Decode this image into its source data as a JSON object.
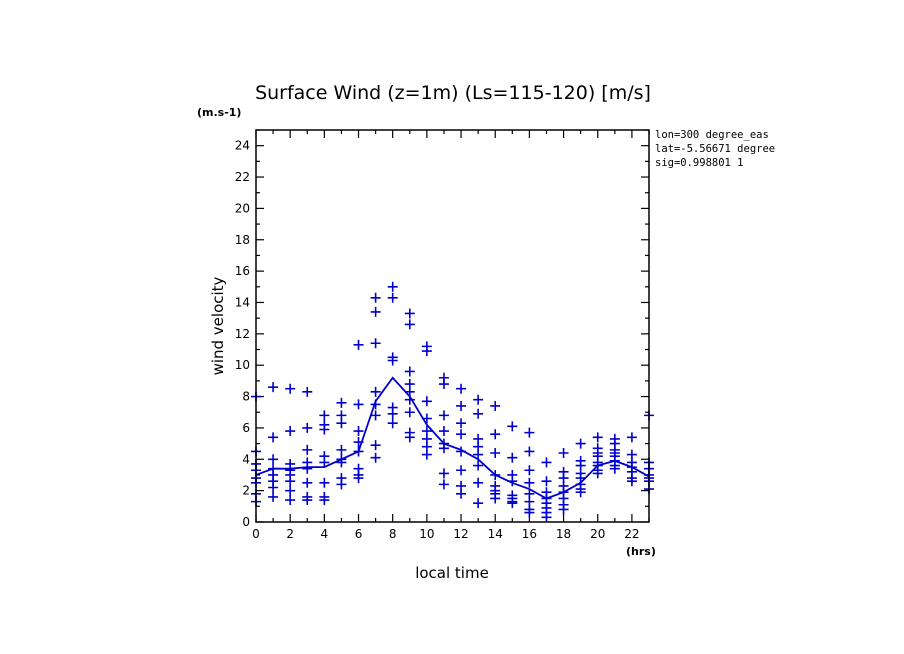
{
  "chart_data": {
    "type": "scatter",
    "title": "Surface Wind (z=1m) (Ls=115-120) [m/s]",
    "y_unit_label": "(m.s-1)",
    "x_unit_label": "(hrs)",
    "xlabel": "local time",
    "ylabel": "wind velocity",
    "xlim": [
      0,
      23
    ],
    "ylim": [
      0,
      25
    ],
    "x_ticks": [
      "0",
      "2",
      "4",
      "6",
      "8",
      "10",
      "12",
      "14",
      "16",
      "18",
      "20",
      "22"
    ],
    "y_ticks": [
      "0",
      "2",
      "4",
      "6",
      "8",
      "10",
      "12",
      "14",
      "16",
      "18",
      "20",
      "22",
      "24"
    ],
    "annotations": [
      "lon=300 degree_eas",
      "lat=-5.56671 degree",
      "sig=0.998801 1"
    ],
    "colors": {
      "series": "#0000cc",
      "axes": "#000000"
    },
    "series": [
      {
        "style": "markers",
        "marker": "plus",
        "points": [
          [
            0,
            8.0
          ],
          [
            0,
            4.5
          ],
          [
            0,
            3.7
          ],
          [
            0,
            3.3
          ],
          [
            0,
            2.8
          ],
          [
            0,
            2.5
          ],
          [
            0,
            1.8
          ],
          [
            0,
            1.3
          ],
          [
            1,
            8.6
          ],
          [
            1,
            5.4
          ],
          [
            1,
            4.0
          ],
          [
            1,
            3.4
          ],
          [
            1,
            3.0
          ],
          [
            1,
            2.6
          ],
          [
            1,
            2.2
          ],
          [
            1,
            1.6
          ],
          [
            2,
            8.5
          ],
          [
            2,
            5.8
          ],
          [
            2,
            3.7
          ],
          [
            2,
            3.3
          ],
          [
            2,
            3.0
          ],
          [
            2,
            2.6
          ],
          [
            2,
            2.0
          ],
          [
            2,
            1.4
          ],
          [
            3,
            8.3
          ],
          [
            3,
            6.0
          ],
          [
            3,
            4.6
          ],
          [
            3,
            3.8
          ],
          [
            3,
            3.4
          ],
          [
            3,
            2.5
          ],
          [
            3,
            1.6
          ],
          [
            3,
            1.4
          ],
          [
            4,
            6.8
          ],
          [
            4,
            6.2
          ],
          [
            4,
            5.9
          ],
          [
            4,
            4.2
          ],
          [
            4,
            3.8
          ],
          [
            4,
            2.5
          ],
          [
            4,
            1.6
          ],
          [
            4,
            1.4
          ],
          [
            5,
            7.6
          ],
          [
            5,
            6.8
          ],
          [
            5,
            6.3
          ],
          [
            5,
            4.6
          ],
          [
            5,
            4.0
          ],
          [
            5,
            3.8
          ],
          [
            5,
            2.8
          ],
          [
            5,
            2.4
          ],
          [
            6,
            11.3
          ],
          [
            6,
            7.5
          ],
          [
            6,
            5.8
          ],
          [
            6,
            5.1
          ],
          [
            6,
            4.5
          ],
          [
            6,
            3.4
          ],
          [
            6,
            3.0
          ],
          [
            6,
            2.8
          ],
          [
            7,
            14.3
          ],
          [
            7,
            13.4
          ],
          [
            7,
            11.4
          ],
          [
            7,
            8.3
          ],
          [
            7,
            7.5
          ],
          [
            7,
            6.8
          ],
          [
            7,
            4.9
          ],
          [
            7,
            4.1
          ],
          [
            8,
            15.0
          ],
          [
            8,
            14.3
          ],
          [
            8,
            10.5
          ],
          [
            8,
            10.3
          ],
          [
            8,
            7.3
          ],
          [
            8,
            6.9
          ],
          [
            8,
            6.3
          ],
          [
            9,
            13.3
          ],
          [
            9,
            12.6
          ],
          [
            9,
            9.6
          ],
          [
            9,
            8.8
          ],
          [
            9,
            8.3
          ],
          [
            9,
            7.8
          ],
          [
            9,
            7.0
          ],
          [
            9,
            5.7
          ],
          [
            9,
            5.4
          ],
          [
            10,
            11.2
          ],
          [
            10,
            10.9
          ],
          [
            10,
            7.7
          ],
          [
            10,
            6.6
          ],
          [
            10,
            5.8
          ],
          [
            10,
            5.3
          ],
          [
            10,
            4.8
          ],
          [
            10,
            4.3
          ],
          [
            11,
            9.2
          ],
          [
            11,
            8.8
          ],
          [
            11,
            6.8
          ],
          [
            11,
            5.8
          ],
          [
            11,
            5.0
          ],
          [
            11,
            4.7
          ],
          [
            11,
            3.1
          ],
          [
            11,
            2.4
          ],
          [
            12,
            8.5
          ],
          [
            12,
            7.4
          ],
          [
            12,
            6.3
          ],
          [
            12,
            5.6
          ],
          [
            12,
            4.5
          ],
          [
            12,
            3.3
          ],
          [
            12,
            2.3
          ],
          [
            12,
            1.8
          ],
          [
            13,
            7.8
          ],
          [
            13,
            6.9
          ],
          [
            13,
            5.3
          ],
          [
            13,
            4.8
          ],
          [
            13,
            4.3
          ],
          [
            13,
            3.6
          ],
          [
            13,
            2.5
          ],
          [
            13,
            1.2
          ],
          [
            14,
            7.4
          ],
          [
            14,
            5.6
          ],
          [
            14,
            4.4
          ],
          [
            14,
            3.0
          ],
          [
            14,
            2.3
          ],
          [
            14,
            2.0
          ],
          [
            14,
            1.8
          ],
          [
            14,
            1.5
          ],
          [
            15,
            6.1
          ],
          [
            15,
            4.1
          ],
          [
            15,
            3.0
          ],
          [
            15,
            2.6
          ],
          [
            15,
            1.7
          ],
          [
            15,
            1.5
          ],
          [
            15,
            1.3
          ],
          [
            15,
            1.2
          ],
          [
            16,
            5.7
          ],
          [
            16,
            4.5
          ],
          [
            16,
            3.3
          ],
          [
            16,
            2.5
          ],
          [
            16,
            1.8
          ],
          [
            16,
            1.3
          ],
          [
            16,
            0.8
          ],
          [
            16,
            0.6
          ],
          [
            17,
            3.8
          ],
          [
            17,
            2.6
          ],
          [
            17,
            1.9
          ],
          [
            17,
            1.5
          ],
          [
            17,
            1.2
          ],
          [
            17,
            0.9
          ],
          [
            17,
            0.6
          ],
          [
            17,
            0.3
          ],
          [
            18,
            4.4
          ],
          [
            18,
            3.2
          ],
          [
            18,
            2.8
          ],
          [
            18,
            2.3
          ],
          [
            18,
            1.9
          ],
          [
            18,
            1.5
          ],
          [
            18,
            1.1
          ],
          [
            18,
            0.8
          ],
          [
            19,
            5.0
          ],
          [
            19,
            3.9
          ],
          [
            19,
            3.6
          ],
          [
            19,
            3.1
          ],
          [
            19,
            2.8
          ],
          [
            19,
            2.4
          ],
          [
            19,
            2.1
          ],
          [
            19,
            1.9
          ],
          [
            20,
            5.4
          ],
          [
            20,
            4.7
          ],
          [
            20,
            4.4
          ],
          [
            20,
            4.2
          ],
          [
            20,
            3.8
          ],
          [
            20,
            3.6
          ],
          [
            20,
            3.3
          ],
          [
            20,
            3.1
          ],
          [
            21,
            5.3
          ],
          [
            21,
            5.0
          ],
          [
            21,
            4.6
          ],
          [
            21,
            4.4
          ],
          [
            21,
            4.2
          ],
          [
            21,
            3.9
          ],
          [
            21,
            3.6
          ],
          [
            21,
            3.4
          ],
          [
            22,
            5.4
          ],
          [
            22,
            4.3
          ],
          [
            22,
            3.8
          ],
          [
            22,
            3.5
          ],
          [
            22,
            3.2
          ],
          [
            22,
            2.8
          ],
          [
            22,
            2.6
          ],
          [
            23,
            6.8
          ],
          [
            23,
            3.8
          ],
          [
            23,
            3.4
          ],
          [
            23,
            3.0
          ],
          [
            23,
            2.8
          ],
          [
            23,
            2.6
          ],
          [
            23,
            2.1
          ]
        ]
      },
      {
        "style": "line",
        "x": [
          0,
          1,
          2,
          3,
          4,
          5,
          6,
          7,
          8,
          9,
          10,
          11,
          12,
          13,
          14,
          15,
          16,
          17,
          18,
          19,
          20,
          21,
          22,
          23
        ],
        "values": [
          3.0,
          3.4,
          3.4,
          3.5,
          3.5,
          4.0,
          4.5,
          7.7,
          9.2,
          8.0,
          6.2,
          5.0,
          4.6,
          4.0,
          3.0,
          2.5,
          2.1,
          1.5,
          1.9,
          2.5,
          3.6,
          3.9,
          3.5,
          2.9
        ]
      }
    ]
  }
}
